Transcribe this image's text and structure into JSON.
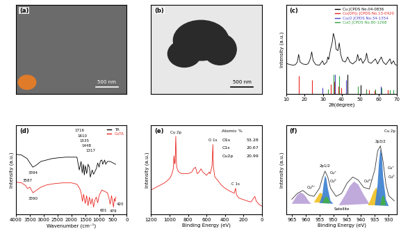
{
  "chart_data": [
    {
      "type": "image",
      "label": "(a)",
      "scale_bar": "500 nm",
      "tick_labels": false
    },
    {
      "type": "image",
      "label": "(b)",
      "scale_bar": "500 nm",
      "tick_labels": false
    },
    {
      "type": "line",
      "label": "(c)",
      "xlabel": "2θ(degree)",
      "ylabel": "Intensity (a.u.)",
      "xlim": [
        10,
        70
      ],
      "xticks": [
        10,
        20,
        30,
        40,
        50,
        60,
        70
      ],
      "ylim": [
        0,
        140
      ],
      "tick_labels": "x",
      "legend": "upper right",
      "color": "#000000",
      "x": [
        10,
        12,
        14,
        15,
        16,
        16.7,
        17.5,
        19,
        21,
        22,
        23,
        23.8,
        24.6,
        26,
        28,
        29.6,
        30.5,
        32,
        32.5,
        33,
        34,
        35,
        35.5,
        36,
        36.4,
        37,
        38,
        38.7,
        39.5,
        40.5,
        42,
        43.3,
        44.5,
        46,
        48,
        48.7,
        49.5,
        50.4,
        51.5,
        53,
        53.5,
        54.5,
        56,
        58.3,
        59.5,
        61.5,
        62.5,
        64,
        66.2,
        67,
        68.1,
        69,
        70
      ],
      "values": [
        48,
        46,
        45,
        46,
        50,
        62,
        50,
        47,
        46,
        48,
        55,
        66,
        52,
        46,
        45,
        52,
        46,
        50,
        58,
        54,
        70,
        82,
        95,
        90,
        85,
        70,
        68,
        80,
        62,
        52,
        50,
        58,
        50,
        47,
        52,
        62,
        52,
        56,
        48,
        55,
        64,
        50,
        48,
        55,
        47,
        58,
        50,
        46,
        55,
        47,
        52,
        46,
        45
      ],
      "series": [
        {
          "name": "Cu JCPDS No.04-0836",
          "color": "#000000",
          "type": "stick",
          "x": [
            43.3,
            50.4
          ],
          "values": [
            30,
            14
          ]
        },
        {
          "name": "Cu(OH)₂ JCPDS No.13-0420",
          "color": "#e8231d",
          "type": "stick",
          "x": [
            16.7,
            23.8,
            34.1,
            35.9,
            38.2,
            39.8,
            53.4,
            55.0,
            57.8,
            64.9
          ],
          "values": [
            28,
            22,
            15,
            20,
            12,
            10,
            8,
            6,
            5,
            6
          ]
        },
        {
          "name": "Cu₂O JCPDS No.34-1354",
          "color": "#4b3fc4",
          "type": "stick",
          "x": [
            29.6,
            36.4,
            42.3,
            61.3
          ],
          "values": [
            10,
            30,
            22,
            12
          ]
        },
        {
          "name": "CuO JCPDS No.80-1268",
          "color": "#2e9e3e",
          "type": "stick",
          "x": [
            32.5,
            35.5,
            38.7,
            48.7,
            53.5,
            58.3,
            61.5,
            66.2,
            68.1
          ],
          "values": [
            8,
            30,
            28,
            12,
            6,
            8,
            10,
            6,
            7
          ]
        }
      ]
    },
    {
      "type": "line",
      "label": "(d)",
      "xlabel": "Wavenumber (cm⁻¹)",
      "ylabel": "Intensity (a.u.)",
      "xlim": [
        4000,
        0
      ],
      "xticks": [
        4000,
        3500,
        3000,
        2500,
        2000,
        1500,
        1000,
        500,
        0
      ],
      "ylim": [
        0,
        125
      ],
      "tick_labels": "x",
      "legend": "upper right",
      "series": [
        {
          "name": "TA",
          "color": "#000000",
          "x": [
            4000,
            3800,
            3600,
            3500,
            3394,
            3300,
            3100,
            2900,
            2700,
            2500,
            2200,
            2000,
            1800,
            1716,
            1650,
            1610,
            1570,
            1535,
            1500,
            1448,
            1400,
            1350,
            1317,
            1250,
            1200,
            1150,
            1100,
            1050,
            1000,
            950,
            900,
            870,
            800,
            760,
            700,
            600,
            500,
            400
          ],
          "values": [
            84,
            83,
            78,
            72,
            66,
            68,
            74,
            76,
            78,
            79,
            80,
            80,
            80,
            62,
            74,
            58,
            70,
            55,
            68,
            57,
            70,
            66,
            52,
            62,
            56,
            60,
            64,
            72,
            66,
            75,
            76,
            70,
            76,
            70,
            74,
            74,
            72,
            70
          ]
        },
        {
          "name": "CuTA",
          "color": "#e8231d",
          "x": [
            4000,
            3800,
            3650,
            3587,
            3500,
            3390,
            3250,
            3100,
            2900,
            2600,
            2300,
            2000,
            1800,
            1700,
            1650,
            1600,
            1560,
            1500,
            1450,
            1400,
            1350,
            1300,
            1250,
            1200,
            1150,
            1100,
            1050,
            1000,
            950,
            900,
            800,
            700,
            650,
            601,
            550,
            479,
            450,
            420,
            400
          ],
          "values": [
            45,
            44,
            40,
            36,
            38,
            30,
            34,
            38,
            41,
            43,
            44,
            44,
            42,
            36,
            30,
            18,
            28,
            15,
            26,
            12,
            24,
            14,
            22,
            10,
            20,
            24,
            16,
            26,
            30,
            34,
            32,
            30,
            24,
            14,
            26,
            10,
            22,
            18,
            24
          ]
        }
      ],
      "annotations": [
        {
          "text": "3394",
          "x": 3394,
          "y": 58
        },
        {
          "text": "1716",
          "x": 1716,
          "y": 117
        },
        {
          "text": "1610",
          "x": 1610,
          "y": 110
        },
        {
          "text": "1535",
          "x": 1535,
          "y": 103
        },
        {
          "text": "1448",
          "x": 1448,
          "y": 96
        },
        {
          "text": "1317",
          "x": 1317,
          "y": 89
        },
        {
          "text": "3587",
          "x": 3587,
          "y": 47
        },
        {
          "text": "3390",
          "x": 3390,
          "y": 22
        },
        {
          "text": "601",
          "x": 850,
          "y": 5
        },
        {
          "text": "479",
          "x": 500,
          "y": 4
        },
        {
          "text": "420",
          "x": 250,
          "y": 14
        }
      ]
    },
    {
      "type": "line",
      "label": "(e)",
      "xlabel": "Binding Energy (eV)",
      "ylabel": "Intensity (a.u.)",
      "xlim": [
        1200,
        0
      ],
      "xticks": [
        1200,
        1000,
        800,
        600,
        400,
        200,
        0
      ],
      "ylim": [
        0,
        110
      ],
      "tick_labels": "x",
      "color": "#e8231d",
      "x": [
        1200,
        1150,
        1100,
        1050,
        1000,
        980,
        960,
        953,
        945,
        940,
        933,
        925,
        915,
        900,
        870,
        840,
        800,
        760,
        740,
        720,
        700,
        680,
        660,
        640,
        600,
        570,
        560,
        540,
        531,
        525,
        510,
        480,
        440,
        400,
        340,
        300,
        285,
        275,
        250,
        200,
        150,
        120,
        100,
        77,
        60,
        30,
        0
      ],
      "values": [
        30,
        33,
        36,
        39,
        44,
        48,
        56,
        72,
        62,
        64,
        96,
        60,
        55,
        52,
        50,
        50,
        50,
        52,
        56,
        58,
        50,
        52,
        56,
        52,
        48,
        52,
        50,
        60,
        86,
        58,
        46,
        42,
        36,
        32,
        28,
        26,
        32,
        24,
        20,
        18,
        16,
        15,
        18,
        22,
        16,
        12,
        10
      ],
      "annotations": [
        {
          "text": "Cu 2p",
          "x": 933,
          "y": 101
        },
        {
          "text": "O 1s",
          "x": 531,
          "y": 91
        },
        {
          "text": "C 1s",
          "x": 285,
          "y": 37
        }
      ],
      "atomic_percent": {
        "title": "Atomic %",
        "rows": [
          {
            "label": "O1s",
            "value": 53.28
          },
          {
            "label": "C1s",
            "value": 20.67
          },
          {
            "label": "Cu2p",
            "value": 20.99
          }
        ]
      }
    },
    {
      "type": "line",
      "label": "(f)",
      "xlabel": "Binding Energy (eV)",
      "ylabel": "Intensity (a.u.)",
      "xlim": [
        967,
        927
      ],
      "xticks": [
        965,
        960,
        955,
        950,
        945,
        940,
        935,
        930
      ],
      "ylim": [
        0,
        120
      ],
      "tick_labels": "x",
      "color": "#333333",
      "x": [
        965,
        963,
        961,
        959,
        957,
        955,
        954,
        953,
        952,
        951,
        949,
        947,
        945,
        943,
        941,
        939,
        937,
        935,
        934,
        933,
        932,
        931,
        930,
        928
      ],
      "values": [
        20,
        28,
        32,
        26,
        24,
        35,
        48,
        58,
        50,
        35,
        24,
        28,
        42,
        50,
        46,
        36,
        34,
        60,
        85,
        92,
        70,
        40,
        25,
        18
      ],
      "components": [
        {
          "color": "#b9a0d8",
          "x": [
            965,
            964,
            963,
            962,
            961,
            960,
            959,
            958
          ],
          "values": [
            14,
            20,
            26,
            29,
            28,
            24,
            18,
            14
          ]
        },
        {
          "color": "#b9a0d8",
          "x": [
            948,
            946,
            944,
            942.5,
            941,
            939,
            937
          ],
          "values": [
            12,
            24,
            38,
            44,
            40,
            26,
            14
          ]
        },
        {
          "color": "#f0c020",
          "x": [
            957,
            956,
            955,
            954.5,
            954,
            953,
            952
          ],
          "values": [
            16,
            22,
            28,
            29,
            27,
            20,
            15
          ]
        },
        {
          "color": "#f0c020",
          "x": [
            937.5,
            936.5,
            935.5,
            934.5,
            933.5,
            932.5
          ],
          "values": [
            12,
            20,
            30,
            36,
            28,
            12
          ]
        },
        {
          "color": "#3a7fd0",
          "x": [
            955,
            954,
            953.5,
            953,
            952.5,
            952,
            951,
            950
          ],
          "values": [
            15,
            25,
            40,
            52,
            48,
            35,
            18,
            14
          ]
        },
        {
          "color": "#3a7fd0",
          "x": [
            935,
            934,
            933.5,
            933,
            932.5,
            932,
            931,
            930
          ],
          "values": [
            12,
            40,
            70,
            88,
            80,
            50,
            20,
            11
          ]
        },
        {
          "color": "#40b040",
          "x": [
            954,
            953,
            952.5,
            952,
            951
          ],
          "values": [
            15,
            22,
            24,
            22,
            15
          ]
        },
        {
          "color": "#40b040",
          "x": [
            933,
            932.5,
            932,
            931.5,
            931
          ],
          "values": [
            12,
            22,
            26,
            22,
            12
          ]
        }
      ],
      "annotations": [
        {
          "text": "Cu 2p",
          "x": 929.5,
          "y": 112
        },
        {
          "text": "2p1/2",
          "x": 953,
          "y": 65
        },
        {
          "text": "2p3/2",
          "x": 933,
          "y": 98
        },
        {
          "text": "Cu²⁺",
          "x": 958,
          "y": 36
        },
        {
          "text": "Cu⁺",
          "x": 950,
          "y": 56
        },
        {
          "text": "Cu⁰",
          "x": 950,
          "y": 44
        },
        {
          "text": "Cu²⁺",
          "x": 937.5,
          "y": 44
        },
        {
          "text": "Cu⁺",
          "x": 929,
          "y": 62
        },
        {
          "text": "Cu⁰",
          "x": 929,
          "y": 50
        },
        {
          "text": "Satellite",
          "x": 947,
          "y": 7
        }
      ]
    }
  ]
}
